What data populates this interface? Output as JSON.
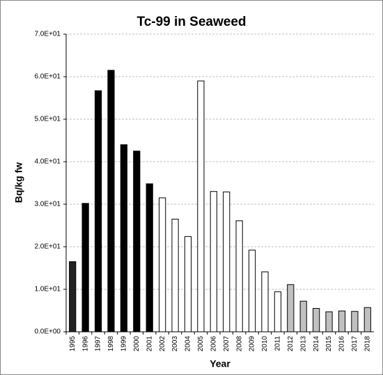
{
  "chart_data": {
    "type": "bar",
    "title": "Tc-99 in Seaweed",
    "x_label": "Year",
    "y_label": "Bq/kg fw",
    "categories": [
      "1995",
      "1996",
      "1997",
      "1998",
      "1999",
      "2000",
      "2001",
      "2002",
      "2003",
      "2004",
      "2005",
      "2006",
      "2007",
      "2008",
      "2009",
      "2010",
      "2011",
      "2012",
      "2013",
      "2014",
      "2015",
      "2016",
      "2017",
      "2018"
    ],
    "values": [
      16.5,
      30.2,
      56.7,
      61.5,
      44,
      42.5,
      34.8,
      31.5,
      26.5,
      22.4,
      59,
      33,
      32.9,
      26.1,
      19.2,
      14.1,
      9.4,
      11.1,
      7.2,
      5.5,
      4.7,
      4.9,
      4.8,
      5.7
    ],
    "colors": [
      "#222222",
      "#000000",
      "#000000",
      "#000000",
      "#000000",
      "#000000",
      "#000000",
      "#ffffff",
      "#ffffff",
      "#ffffff",
      "#ffffff",
      "#ffffff",
      "#ffffff",
      "#ffffff",
      "#ffffff",
      "#ffffff",
      "#ffffff",
      "#c0c0c0",
      "#c0c0c0",
      "#c0c0c0",
      "#c0c0c0",
      "#c0c0c0",
      "#c0c0c0",
      "#c0c0c0"
    ],
    "ylim": [
      0,
      70
    ],
    "yticks": [
      {
        "value": 0,
        "label": "0.0E+00"
      },
      {
        "value": 10,
        "label": "1.0E+01"
      },
      {
        "value": 20,
        "label": "2.0E+01"
      },
      {
        "value": 30,
        "label": "3.0E+01"
      },
      {
        "value": 40,
        "label": "4.0E+01"
      },
      {
        "value": 50,
        "label": "5.0E+01"
      },
      {
        "value": 60,
        "label": "6.0E+01"
      },
      {
        "value": 70,
        "label": "7.0E+01"
      }
    ],
    "grid": true
  }
}
